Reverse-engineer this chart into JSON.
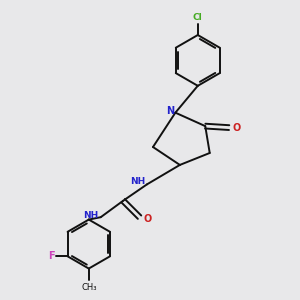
{
  "background_color": "#e8e8ea",
  "bond_color": "#111111",
  "N_color": "#2222cc",
  "O_color": "#cc2222",
  "F_color": "#cc44bb",
  "Cl_color": "#44aa22",
  "figsize": [
    3.0,
    3.0
  ],
  "dpi": 100,
  "xlim": [
    0,
    10
  ],
  "ylim": [
    0,
    10
  ]
}
